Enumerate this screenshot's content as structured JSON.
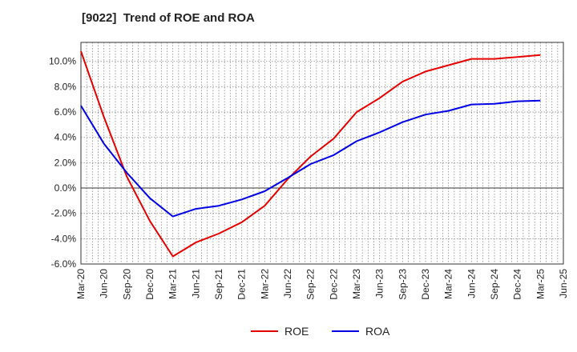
{
  "chart_data": {
    "type": "line",
    "title": "[9022]  Trend of ROE and ROA",
    "xlabel": "",
    "ylabel": "",
    "x": [
      "Mar-20",
      "Jun-20",
      "Sep-20",
      "Dec-20",
      "Mar-21",
      "Jun-21",
      "Sep-21",
      "Dec-21",
      "Mar-22",
      "Jun-22",
      "Sep-22",
      "Dec-22",
      "Mar-23",
      "Jun-23",
      "Sep-23",
      "Dec-23",
      "Mar-24",
      "Jun-24",
      "Sep-24",
      "Dec-24",
      "Mar-25"
    ],
    "x_tick_labels": [
      "Mar-20",
      "Jun-20",
      "Sep-20",
      "Dec-20",
      "Mar-21",
      "Jun-21",
      "Sep-21",
      "Dec-21",
      "Mar-22",
      "Jun-22",
      "Sep-22",
      "Dec-22",
      "Mar-23",
      "Jun-23",
      "Sep-23",
      "Dec-23",
      "Mar-24",
      "Jun-24",
      "Sep-24",
      "Dec-24",
      "Mar-25",
      "Jun-25"
    ],
    "y_tick_labels": [
      "10.0%",
      "8.0%",
      "6.0%",
      "4.0%",
      "2.0%",
      "0.0%",
      "-2.0%",
      "-4.0%",
      "-6.0%"
    ],
    "y_ticks": [
      10,
      8,
      6,
      4,
      2,
      0,
      -2,
      -4,
      -6
    ],
    "ylim": [
      -6,
      11.5
    ],
    "grid": true,
    "legend_position": "bottom-center",
    "series": [
      {
        "name": "ROE",
        "color": "#e60000",
        "values": [
          10.8,
          5.6,
          0.9,
          -2.6,
          -5.4,
          -4.3,
          -3.6,
          -2.7,
          -1.4,
          0.7,
          2.5,
          3.9,
          6.0,
          7.1,
          8.4,
          9.2,
          9.7,
          10.2,
          10.2,
          10.35,
          10.5
        ]
      },
      {
        "name": "ROA",
        "color": "#0000e6",
        "values": [
          6.5,
          3.5,
          1.2,
          -0.8,
          -2.25,
          -1.65,
          -1.4,
          -0.9,
          -0.25,
          0.8,
          1.9,
          2.6,
          3.7,
          4.4,
          5.2,
          5.8,
          6.1,
          6.6,
          6.65,
          6.85,
          6.9
        ]
      }
    ]
  }
}
